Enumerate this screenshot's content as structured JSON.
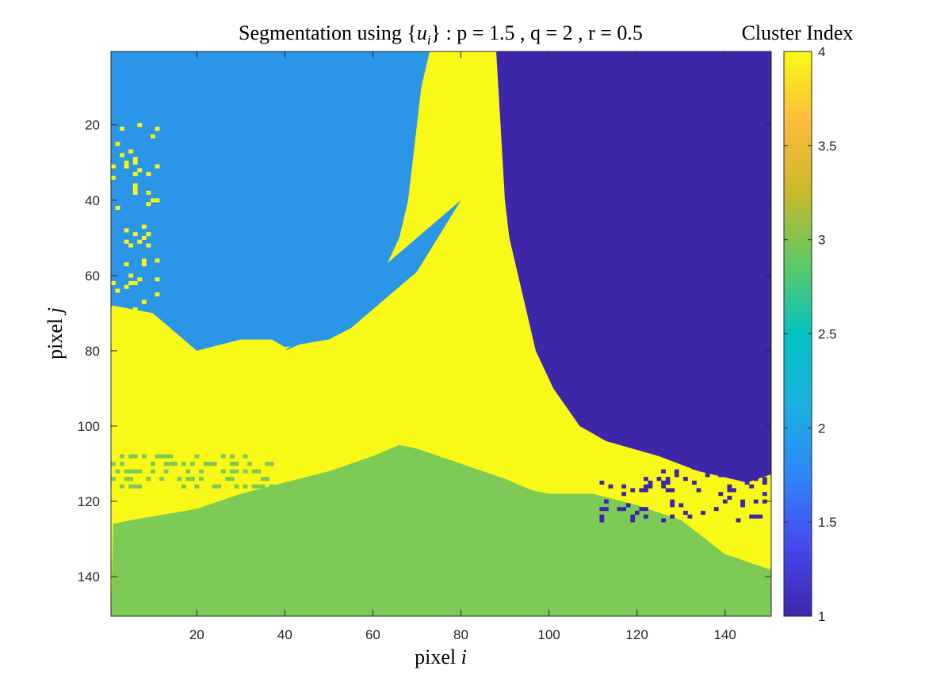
{
  "chart_data": {
    "type": "heatmap",
    "title": {
      "main": "Segmentation using {",
      "var": "u",
      "sub": "i",
      "rest": "} : p = 1.5 , q = 2 , r = 0.5"
    },
    "xlabel": {
      "text": "pixel ",
      "var": "i"
    },
    "ylabel": {
      "text": "pixel ",
      "var": "j"
    },
    "x_range": [
      1,
      150
    ],
    "y_range": [
      1,
      150
    ],
    "y_reversed": true,
    "x_ticks": [
      20,
      40,
      60,
      80,
      100,
      120,
      140
    ],
    "y_ticks": [
      20,
      40,
      60,
      80,
      100,
      120,
      140
    ],
    "colorbar": {
      "label": "Cluster Index",
      "range": [
        1,
        4
      ],
      "ticks": [
        1,
        1.5,
        2,
        2.5,
        3,
        3.5,
        4
      ],
      "tick_labels": [
        "1",
        "1.5",
        "2",
        "2.5",
        "3",
        "3.5",
        "4"
      ],
      "colormap": "parula",
      "stops": [
        "#3e26a8",
        "#4748f0",
        "#2e87f7",
        "#1bb0e0",
        "#02c2c0",
        "#5ec962",
        "#c8b92c",
        "#fcbb3d",
        "#f9fb14"
      ]
    },
    "clusters": [
      {
        "index": 1,
        "color": "#3e26a8"
      },
      {
        "index": 2,
        "color": "#2b95e8"
      },
      {
        "index": 3,
        "color": "#7dca57"
      },
      {
        "index": 4,
        "color": "#f9f917"
      }
    ],
    "regions": {
      "cluster2_right_boundary": [
        [
          0,
          73
        ],
        [
          5,
          72
        ],
        [
          10,
          71
        ],
        [
          20,
          70
        ],
        [
          30,
          69
        ],
        [
          40,
          68
        ],
        [
          50,
          66
        ],
        [
          55,
          64
        ],
        [
          60,
          62
        ],
        [
          65,
          59
        ],
        [
          70,
          55
        ],
        [
          75,
          49
        ],
        [
          78,
          44
        ],
        [
          80,
          40
        ]
      ],
      "cluster2_bottom_boundary": [
        [
          1,
          68
        ],
        [
          10,
          70
        ],
        [
          20,
          80
        ],
        [
          30,
          77
        ],
        [
          37,
          77
        ],
        [
          40,
          79
        ],
        [
          50,
          77
        ],
        [
          55,
          74
        ],
        [
          62,
          67
        ],
        [
          66,
          63
        ],
        [
          70,
          59
        ],
        [
          80,
          40
        ]
      ],
      "cluster1_left_boundary": [
        [
          0,
          88
        ],
        [
          20,
          89
        ],
        [
          40,
          90
        ],
        [
          50,
          91
        ],
        [
          60,
          93
        ],
        [
          70,
          95
        ],
        [
          80,
          97
        ],
        [
          90,
          101
        ],
        [
          100,
          107
        ],
        [
          104,
          113
        ],
        [
          108,
          125
        ],
        [
          112,
          134
        ],
        [
          115,
          145
        ],
        [
          113,
          150
        ]
      ],
      "cluster3_top_boundary": [
        [
          1,
          126
        ],
        [
          5,
          125
        ],
        [
          10,
          124
        ],
        [
          20,
          122
        ],
        [
          30,
          118
        ],
        [
          40,
          115
        ],
        [
          50,
          112
        ],
        [
          60,
          108
        ],
        [
          66,
          105
        ],
        [
          70,
          106
        ],
        [
          80,
          110
        ],
        [
          90,
          114
        ],
        [
          96,
          117
        ],
        [
          100,
          118
        ],
        [
          110,
          118
        ],
        [
          120,
          121
        ],
        [
          130,
          125
        ],
        [
          140,
          134
        ],
        [
          150,
          138
        ]
      ]
    }
  }
}
